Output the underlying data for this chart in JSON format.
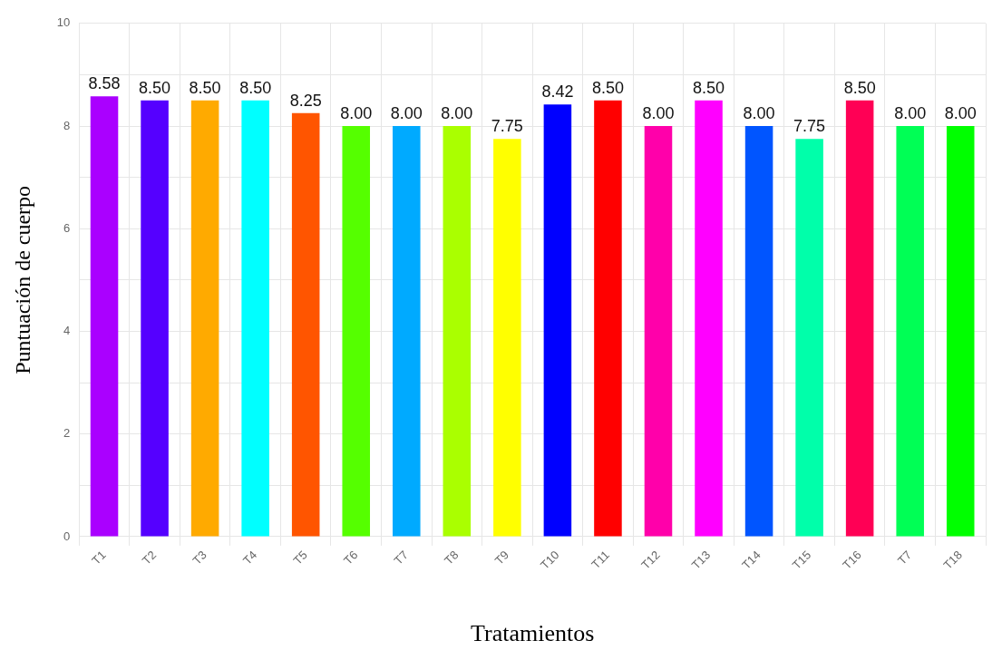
{
  "chart_data": {
    "type": "bar",
    "xlabel": "Tratamientos",
    "ylabel": "Puntuación de cuerpo",
    "categories": [
      "T1",
      "T2",
      "T3",
      "T4",
      "T5",
      "T6",
      "T7",
      "T8",
      "T9",
      "T10",
      "T11",
      "T12",
      "T13",
      "T14",
      "T15",
      "T16",
      "T7",
      "T18"
    ],
    "values": [
      8.58,
      8.5,
      8.5,
      8.5,
      8.25,
      8.0,
      8.0,
      8.0,
      7.75,
      8.42,
      8.5,
      8.0,
      8.5,
      8.0,
      7.75,
      8.5,
      8.0,
      8.0
    ],
    "colors": [
      "#aa00ff",
      "#5500ff",
      "#ffaa00",
      "#00ffff",
      "#ff5500",
      "#55ff00",
      "#00aaff",
      "#aaff00",
      "#ffff00",
      "#0000ff",
      "#ff0000",
      "#ff00aa",
      "#ff00ff",
      "#0055ff",
      "#00ffaa",
      "#ff0055",
      "#00ff55",
      "#00ff00"
    ],
    "ylim": [
      0,
      10
    ],
    "yticks": [
      0,
      {
        "value": 1,
        "label": null
      },
      2,
      {
        "value": 3,
        "label": null
      },
      4,
      {
        "value": 5,
        "label": null
      },
      6,
      {
        "value": 7,
        "label": null
      },
      8,
      {
        "value": 9,
        "label": null
      },
      10
    ],
    "value_labels": [
      "8.58",
      "8.50",
      "8.50",
      "8.50",
      "8.25",
      "8.00",
      "8.00",
      "8.00",
      "7.75",
      "8.42",
      "8.50",
      "8.00",
      "8.50",
      "8.00",
      "7.75",
      "8.50",
      "8.00",
      "8.00"
    ],
    "grid": true
  }
}
